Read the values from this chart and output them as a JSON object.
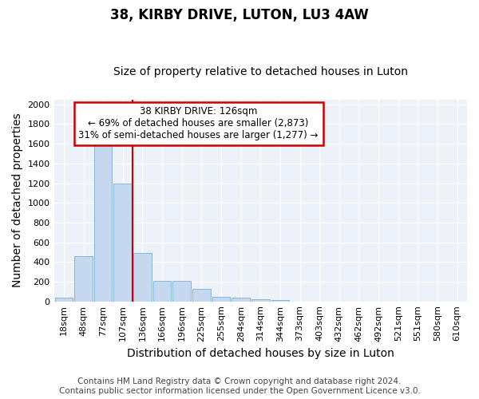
{
  "title": "38, KIRBY DRIVE, LUTON, LU3 4AW",
  "subtitle": "Size of property relative to detached houses in Luton",
  "xlabel": "Distribution of detached houses by size in Luton",
  "ylabel": "Number of detached properties",
  "footer_line1": "Contains HM Land Registry data © Crown copyright and database right 2024.",
  "footer_line2": "Contains public sector information licensed under the Open Government Licence v3.0.",
  "bar_labels": [
    "18sqm",
    "48sqm",
    "77sqm",
    "107sqm",
    "136sqm",
    "166sqm",
    "196sqm",
    "225sqm",
    "255sqm",
    "284sqm",
    "314sqm",
    "344sqm",
    "373sqm",
    "403sqm",
    "432sqm",
    "462sqm",
    "492sqm",
    "521sqm",
    "551sqm",
    "580sqm",
    "610sqm"
  ],
  "bar_values": [
    35,
    460,
    1600,
    1195,
    490,
    210,
    210,
    125,
    50,
    38,
    22,
    12,
    0,
    0,
    0,
    0,
    0,
    0,
    0,
    0,
    0
  ],
  "bar_color": "#c5d8f0",
  "bar_edgecolor": "#7bafd4",
  "annotation_text": "38 KIRBY DRIVE: 126sqm\n← 69% of detached houses are smaller (2,873)\n31% of semi-detached houses are larger (1,277) →",
  "annotation_box_edgecolor": "#cc0000",
  "annotation_box_facecolor": "#ffffff",
  "vline_x": 4.0,
  "vline_color": "#cc0000",
  "ylim": [
    0,
    2050
  ],
  "yticks": [
    0,
    200,
    400,
    600,
    800,
    1000,
    1200,
    1400,
    1600,
    1800,
    2000
  ],
  "background_color": "#ffffff",
  "grid_color": "#d0dce8",
  "title_fontsize": 12,
  "subtitle_fontsize": 10,
  "axis_label_fontsize": 10,
  "tick_fontsize": 8,
  "footer_fontsize": 7.5
}
